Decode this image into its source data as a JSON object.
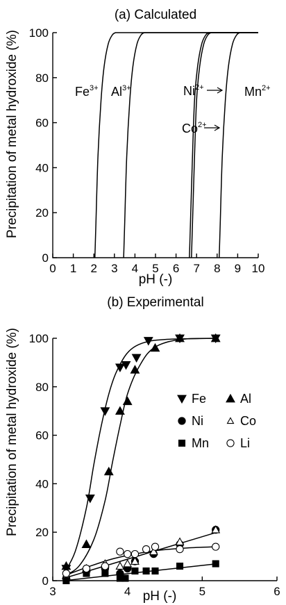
{
  "chart_data": [
    {
      "type": "line",
      "title": "(a) Calculated",
      "xlabel": "pH (-)",
      "ylabel": "Precipitation of metal hydroxide (%)",
      "xlim": [
        0,
        10
      ],
      "ylim": [
        0,
        100
      ],
      "xticks": [
        "0",
        "1",
        "2",
        "3",
        "4",
        "5",
        "6",
        "7",
        "8",
        "9",
        "10"
      ],
      "yticks": [
        "0",
        "20",
        "40",
        "60",
        "80",
        "100"
      ],
      "grid": false,
      "series": [
        {
          "name": "Fe",
          "charge": "3+",
          "x": [
            2.05,
            2.1,
            2.2,
            2.35,
            2.5,
            2.7,
            2.9,
            3.05
          ],
          "y": [
            0,
            15,
            45,
            70,
            85,
            95,
            99,
            100
          ]
        },
        {
          "name": "Al",
          "charge": "3+",
          "x": [
            3.45,
            3.5,
            3.6,
            3.75,
            3.9,
            4.1,
            4.3,
            4.45
          ],
          "y": [
            0,
            15,
            45,
            70,
            85,
            95,
            99,
            100
          ]
        },
        {
          "name": "Co",
          "charge": "2+",
          "x": [
            6.75,
            6.8,
            6.9,
            7.0,
            7.15,
            7.35,
            7.55,
            7.7
          ],
          "y": [
            0,
            15,
            45,
            70,
            85,
            95,
            99,
            100
          ]
        },
        {
          "name": "Ni",
          "charge": "2+",
          "x": [
            6.65,
            6.7,
            6.8,
            6.9,
            7.05,
            7.25,
            7.45,
            7.6
          ],
          "y": [
            0,
            15,
            45,
            70,
            85,
            95,
            99,
            100
          ]
        },
        {
          "name": "Mn",
          "charge": "2+",
          "x": [
            8.1,
            8.15,
            8.25,
            8.4,
            8.55,
            8.75,
            8.95,
            9.1
          ],
          "y": [
            0,
            15,
            45,
            70,
            85,
            95,
            99,
            100
          ]
        }
      ],
      "annotations": [
        {
          "text": "Fe",
          "sup": "3+"
        },
        {
          "text": "Al",
          "sup": "3+"
        },
        {
          "text": "Ni",
          "sup": "2+"
        },
        {
          "text": "Co",
          "sup": "2+"
        },
        {
          "text": "Mn",
          "sup": "2+"
        }
      ]
    },
    {
      "type": "scatter",
      "title": "(b) Experimental",
      "xlabel": "pH (-)",
      "ylabel": "Precipitation of metal hydroxide (%)",
      "xlim": [
        3,
        6
      ],
      "ylim": [
        0,
        100
      ],
      "xticks": [
        "3",
        "4",
        "5",
        "6"
      ],
      "yticks": [
        "0",
        "20",
        "40",
        "60",
        "80",
        "100"
      ],
      "grid": false,
      "legend_position": "right",
      "series": [
        {
          "name": "Fe",
          "marker": "triangle-down-filled",
          "x": [
            3.18,
            3.5,
            3.7,
            3.9,
            3.98,
            4.12,
            4.28,
            4.7,
            5.18
          ],
          "y": [
            5,
            34,
            70,
            88,
            89,
            92,
            99,
            100,
            100
          ]
        },
        {
          "name": "Al",
          "marker": "triangle-up-filled",
          "x": [
            3.18,
            3.45,
            3.75,
            3.9,
            4.0,
            4.1,
            4.37,
            4.7,
            5.18
          ],
          "y": [
            6,
            15,
            45,
            70,
            74,
            87,
            96,
            100,
            100
          ]
        },
        {
          "name": "Ni",
          "marker": "circle-filled",
          "x": [
            3.18,
            3.45,
            3.7,
            3.9,
            4.0,
            4.1,
            4.35,
            4.7,
            5.18
          ],
          "y": [
            1,
            4,
            5,
            3,
            5,
            8,
            11,
            15,
            21
          ]
        },
        {
          "name": "Co",
          "marker": "triangle-up-open",
          "x": [
            3.18,
            3.45,
            3.7,
            3.9,
            4.0,
            4.1,
            4.35,
            4.7,
            5.18
          ],
          "y": [
            2,
            5,
            7,
            6,
            7,
            8,
            12,
            16,
            21
          ]
        },
        {
          "name": "Mn",
          "marker": "square-filled",
          "x": [
            3.18,
            3.45,
            3.7,
            3.9,
            3.97,
            4.1,
            4.25,
            4.37,
            4.7,
            5.18
          ],
          "y": [
            0,
            3,
            3,
            1,
            1,
            4,
            4,
            4,
            6,
            7
          ]
        },
        {
          "name": "Li",
          "marker": "circle-open",
          "x": [
            3.18,
            3.45,
            3.7,
            3.9,
            4.0,
            4.1,
            4.25,
            4.37,
            4.7,
            5.18
          ],
          "y": [
            3,
            5,
            6,
            12,
            11,
            11,
            13,
            14,
            13,
            14
          ]
        }
      ],
      "fits": [
        {
          "name": "Fe",
          "x": [
            3.15,
            3.3,
            3.45,
            3.55,
            3.65,
            3.75,
            3.85,
            4.0,
            4.2,
            4.5,
            5.2
          ],
          "y": [
            3,
            12,
            30,
            48,
            64,
            77,
            86,
            94,
            98,
            99.5,
            100
          ]
        },
        {
          "name": "Al",
          "x": [
            3.15,
            3.35,
            3.55,
            3.7,
            3.8,
            3.9,
            4.0,
            4.15,
            4.35,
            4.7,
            5.2
          ],
          "y": [
            2,
            6,
            17,
            33,
            49,
            64,
            77,
            88,
            96,
            99.5,
            100
          ]
        },
        {
          "name": "Ni-Co",
          "x": [
            3.15,
            5.2
          ],
          "y": [
            1,
            20
          ]
        },
        {
          "name": "Mn",
          "x": [
            3.15,
            5.2
          ],
          "y": [
            0,
            7
          ]
        },
        {
          "name": "Li",
          "x": [
            3.15,
            3.5,
            3.8,
            4.1,
            4.4,
            4.8,
            5.2
          ],
          "y": [
            2,
            6,
            9,
            11,
            12.5,
            13.5,
            14
          ]
        }
      ]
    }
  ]
}
